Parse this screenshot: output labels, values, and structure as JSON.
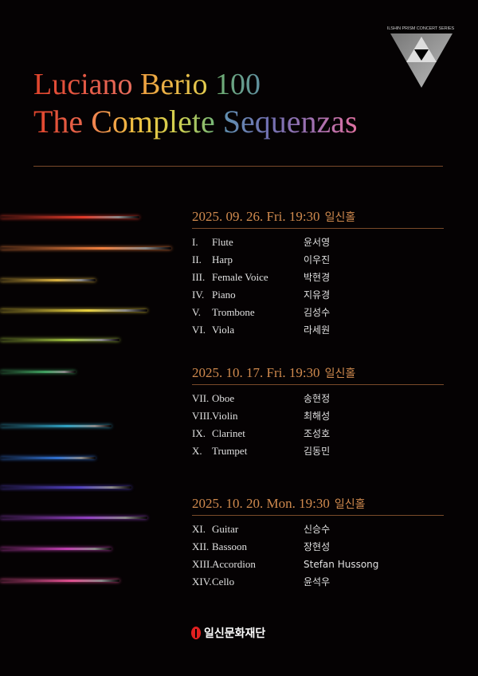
{
  "series_label": "ILSHIN PRISM CONCERT SERIES",
  "title_line1": [
    "Luciano ",
    "Berio ",
    "100"
  ],
  "title_line2": [
    "The ",
    "Complete ",
    "Sequenzas"
  ],
  "colors": {
    "accent": "#d08a4e",
    "rule": "#7a4a2a",
    "logo_red": "#e02020"
  },
  "streak_colors": [
    "#e03a2a",
    "#f08040",
    "#d8b040",
    "#e8d040",
    "#a0c040",
    "#40a060",
    "#30a0c0",
    "#3070d0",
    "#5040c0",
    "#9040c0",
    "#c040b0",
    "#e05090"
  ],
  "sessions": [
    {
      "header": "2025. 09. 26. Fri. 19:30",
      "hall": "일신홀",
      "items": [
        {
          "num": "I.",
          "inst": "Flute",
          "name": "윤서영"
        },
        {
          "num": "II.",
          "inst": "Harp",
          "name": "이우진"
        },
        {
          "num": "III.",
          "inst": "Female Voice",
          "name": "박현경"
        },
        {
          "num": "IV.",
          "inst": "Piano",
          "name": "지유경"
        },
        {
          "num": "V.",
          "inst": "Trombone",
          "name": "김성수"
        },
        {
          "num": "VI.",
          "inst": "Viola",
          "name": "라세원"
        }
      ]
    },
    {
      "header": "2025. 10. 17. Fri. 19:30",
      "hall": "일신홀",
      "items": [
        {
          "num": "VII.",
          "inst": "Oboe",
          "name": "송현정"
        },
        {
          "num": "VIII.",
          "inst": "Violin",
          "name": "최해성"
        },
        {
          "num": "IX.",
          "inst": "Clarinet",
          "name": "조성호"
        },
        {
          "num": "X.",
          "inst": "Trumpet",
          "name": "김동민"
        }
      ]
    },
    {
      "header": "2025. 10. 20. Mon. 19:30",
      "hall": "일신홀",
      "items": [
        {
          "num": "XI.",
          "inst": "Guitar",
          "name": "신승수"
        },
        {
          "num": "XII.",
          "inst": "Bassoon",
          "name": "장현성"
        },
        {
          "num": "XIII.",
          "inst": "Accordion",
          "name": "Stefan Hussong"
        },
        {
          "num": "XIV.",
          "inst": "Cello",
          "name": "윤석우"
        }
      ]
    }
  ],
  "footer_org": "일신문화재단"
}
